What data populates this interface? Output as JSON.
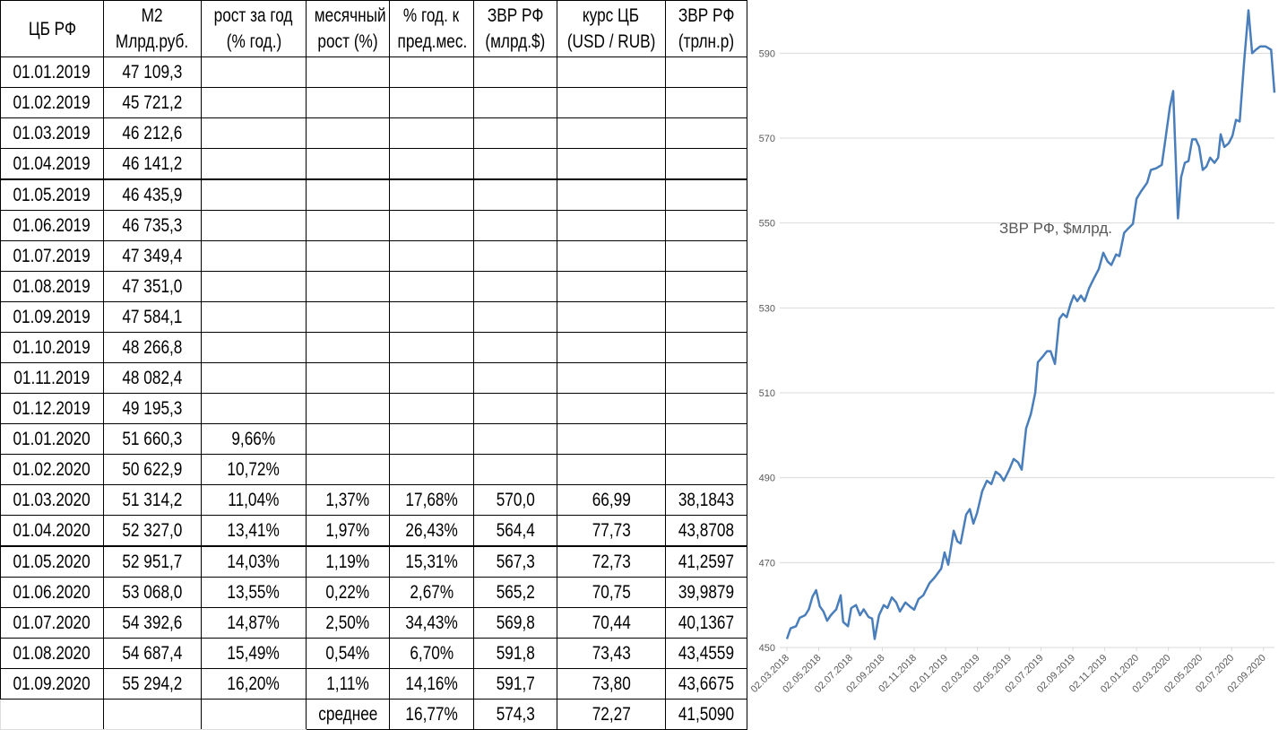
{
  "table": {
    "header": [
      [
        "ЦБ РФ"
      ],
      [
        "М2",
        "Млрд.руб."
      ],
      [
        "рост за год",
        "(% год.)"
      ],
      [
        "месячный",
        "рост (%)"
      ],
      [
        "% год. к",
        "пред.мес."
      ],
      [
        "ЗВР РФ",
        "(млрд.$)"
      ],
      [
        "курс ЦБ",
        "(USD / RUB)"
      ],
      [
        "ЗВР РФ",
        "(трлн.р)"
      ]
    ],
    "rows": [
      [
        "01.01.2019",
        "47 109,3",
        null,
        null,
        null,
        null,
        null,
        null
      ],
      [
        "01.02.2019",
        "45 721,2",
        null,
        null,
        null,
        null,
        null,
        null
      ],
      [
        "01.03.2019",
        "46 212,6",
        null,
        null,
        null,
        null,
        null,
        null
      ],
      [
        "01.04.2019",
        "46 141,2",
        null,
        null,
        null,
        null,
        null,
        null
      ],
      [
        "01.05.2019",
        "46 435,9",
        null,
        null,
        null,
        null,
        null,
        null
      ],
      [
        "01.06.2019",
        "46 735,3",
        null,
        null,
        null,
        null,
        null,
        null
      ],
      [
        "01.07.2019",
        "47 349,4",
        null,
        null,
        null,
        null,
        null,
        null
      ],
      [
        "01.08.2019",
        "47 351,0",
        null,
        null,
        null,
        null,
        null,
        null
      ],
      [
        "01.09.2019",
        "47 584,1",
        null,
        null,
        null,
        null,
        null,
        null
      ],
      [
        "01.10.2019",
        "48 266,8",
        null,
        null,
        null,
        null,
        null,
        null
      ],
      [
        "01.11.2019",
        "48 082,4",
        null,
        null,
        null,
        null,
        null,
        null
      ],
      [
        "01.12.2019",
        "49 195,3",
        null,
        null,
        null,
        null,
        null,
        null
      ],
      [
        "01.01.2020",
        "51 660,3",
        "9,66%",
        null,
        null,
        null,
        null,
        null
      ],
      [
        "01.02.2020",
        "50 622,9",
        "10,72%",
        null,
        null,
        null,
        null,
        null
      ],
      [
        "01.03.2020",
        "51 314,2",
        "11,04%",
        "1,37%",
        "17,68%",
        "570,0",
        "66,99",
        "38,1843"
      ],
      [
        "01.04.2020",
        "52 327,0",
        "13,41%",
        "1,97%",
        "26,43%",
        "564,4",
        "77,73",
        "43,8708"
      ],
      [
        "01.05.2020",
        "52 951,7",
        "14,03%",
        "1,19%",
        "15,31%",
        "567,3",
        "72,73",
        "41,2597"
      ],
      [
        "01.06.2020",
        "53 068,0",
        "13,55%",
        "0,22%",
        "2,67%",
        "565,2",
        "70,75",
        "39,9879"
      ],
      [
        "01.07.2020",
        "54 392,6",
        "14,87%",
        "2,50%",
        "34,43%",
        "569,8",
        "70,44",
        "40,1367"
      ],
      [
        "01.08.2020",
        "54 687,4",
        "15,49%",
        "0,54%",
        "6,70%",
        "591,8",
        "73,43",
        "43,4559"
      ],
      [
        "01.09.2020",
        "55 294,2",
        "16,20%",
        "1,11%",
        "14,16%",
        "591,7",
        "73,80",
        "43,6675"
      ],
      [
        null,
        null,
        null,
        "среднее",
        "16,77%",
        "574,3",
        "72,27",
        "41,5090"
      ]
    ]
  },
  "chart_data": {
    "type": "line",
    "grid": true,
    "x": [
      0,
      1,
      2.5,
      3.5,
      5,
      6,
      7,
      8,
      9,
      10,
      11,
      12,
      13.5,
      14.7,
      15.4,
      16.7,
      17.6,
      18.9,
      20,
      21,
      22.3,
      23.3,
      24,
      25.2,
      26.5,
      27.5,
      28.7,
      29.9,
      30.9,
      32.4,
      33.6,
      34.8,
      36,
      37.3,
      39,
      40.4,
      42.2,
      43.1,
      44.1,
      45.6,
      46.6,
      47.5,
      49,
      50,
      51,
      52,
      53.4,
      54.7,
      55.9,
      57.1,
      58.3,
      59.3,
      60.8,
      62,
      63.2,
      64.2,
      65.4,
      66.7,
      67.9,
      68.6,
      69.9,
      71.1,
      72.1,
      73.3,
      74.5,
      75.5,
      76.5,
      77.5,
      78.4,
      79.4,
      80.4,
      81.4,
      82.6,
      83.8,
      85.3,
      86.5,
      87.7,
      88.7,
      90,
      90.9,
      92.2,
      93.1,
      94.6,
      95.6,
      96.8,
      98.5,
      99.5,
      101,
      102.5,
      103.4,
      104.7,
      105.6,
      106.9,
      107.8,
      108.8,
      109.8,
      110.8,
      111.8,
      112.7,
      113.7,
      114.7,
      115.7,
      116.9,
      117.9,
      118.6,
      119.6,
      120.8,
      121.8,
      122.8,
      123.8,
      125,
      126.2,
      127.2,
      128.2,
      129.4,
      130.9,
      132.4,
      133.3
    ],
    "series": [
      {
        "name": "ЗВР РФ, $млрд.",
        "color": "#4a7ebb",
        "values": [
          452,
          454.5,
          455,
          457,
          457.6,
          459,
          462,
          463.5,
          459.7,
          458.5,
          456.3,
          457.6,
          459,
          462.3,
          456,
          455,
          459.3,
          460,
          457.6,
          459,
          457.2,
          456.8,
          452,
          457.6,
          460,
          459.3,
          461.8,
          460.6,
          458.5,
          460.6,
          459.7,
          458.9,
          461.4,
          462.3,
          465.2,
          466.5,
          468.6,
          472.4,
          469.5,
          477.5,
          475,
          474.5,
          481.3,
          482.6,
          479.2,
          481.7,
          486.8,
          489.3,
          488.5,
          491.4,
          490.6,
          489.3,
          491.9,
          494.4,
          493.6,
          491.9,
          501.6,
          505,
          510,
          517.2,
          518.5,
          519.8,
          519.8,
          516.8,
          527.4,
          528.6,
          527.8,
          530.8,
          532.9,
          531.6,
          532.9,
          531.6,
          534.6,
          536.7,
          539.2,
          543,
          540.9,
          540.1,
          542.6,
          542.2,
          547.7,
          548.5,
          549.8,
          555.7,
          557.4,
          559.5,
          562.5,
          562.9,
          563.7,
          569.2,
          577.3,
          581.1,
          551.1,
          560.8,
          564.2,
          564.6,
          569.7,
          569.7,
          568,
          562.5,
          563.3,
          565.4,
          564.2,
          565.4,
          570.9,
          567.9,
          568.8,
          570.5,
          574.3,
          573.9,
          587.8,
          600.1,
          590,
          590.8,
          591.6,
          591.6,
          590.8,
          580.7
        ]
      }
    ],
    "xlim": [
      0,
      133.3
    ],
    "xticks": [
      {
        "value": 0,
        "label": "02.03.2018"
      },
      {
        "value": 8.7,
        "label": "02.05.2018"
      },
      {
        "value": 17.4,
        "label": "02.07.2018"
      },
      {
        "value": 26.1,
        "label": "02.09.2018"
      },
      {
        "value": 34.8,
        "label": "02.11.2018"
      },
      {
        "value": 43.4,
        "label": "02.01.2019"
      },
      {
        "value": 52.1,
        "label": "02.03.2019"
      },
      {
        "value": 60.8,
        "label": "02.05.2019"
      },
      {
        "value": 69.5,
        "label": "02.07.2019"
      },
      {
        "value": 78.2,
        "label": "02.09.2019"
      },
      {
        "value": 86.9,
        "label": "02.11.2019"
      },
      {
        "value": 95.6,
        "label": "02.01.2020"
      },
      {
        "value": 104.3,
        "label": "02.03.2020"
      },
      {
        "value": 113,
        "label": "02.05.2020"
      },
      {
        "value": 121.6,
        "label": "02.07.2020"
      },
      {
        "value": 130.3,
        "label": "02.09.2020"
      }
    ],
    "ylim": [
      450,
      600
    ],
    "yticks": [
      450,
      470,
      490,
      510,
      530,
      550,
      570,
      590
    ]
  }
}
